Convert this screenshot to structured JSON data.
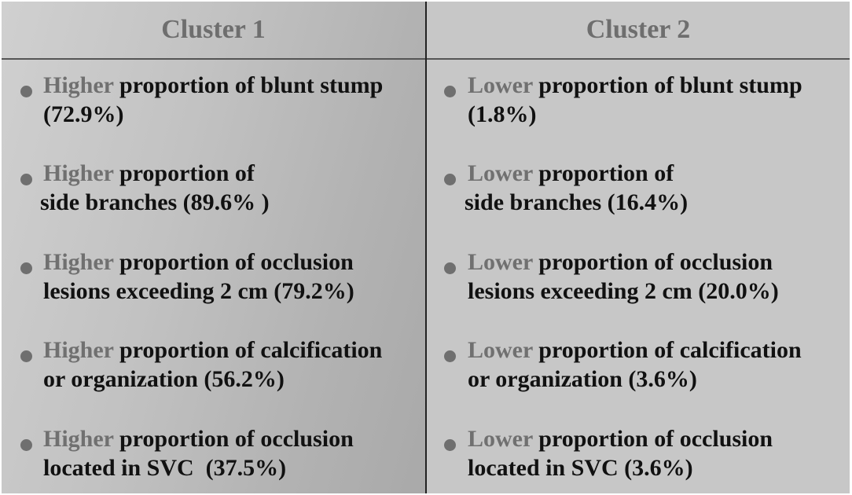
{
  "columns": [
    {
      "header": "Cluster 1",
      "items": [
        {
          "keyword": "Higher",
          "line1_rest": " proportion of blunt stump",
          "line2": "(72.9%)"
        },
        {
          "keyword": "Higher",
          "line1_rest": " proportion of",
          "line2": "side branches (89.6% )"
        },
        {
          "keyword": "Higher",
          "line1_rest": " proportion of occlusion",
          "line2": "lesions exceeding 2 cm (79.2%)"
        },
        {
          "keyword": "Higher",
          "line1_rest": " proportion of calcification",
          "line2": "or organization (56.2%)"
        },
        {
          "keyword": "Higher",
          "line1_rest": " proportion of occlusion",
          "line2": "located in SVC  (37.5%)"
        }
      ]
    },
    {
      "header": "Cluster 2",
      "items": [
        {
          "keyword": "Lower",
          "line1_rest": " proportion of blunt stump",
          "line2": "(1.8%)"
        },
        {
          "keyword": "Lower",
          "line1_rest": " proportion of",
          "line2": "side branches (16.4%)"
        },
        {
          "keyword": "Lower",
          "line1_rest": " proportion of occlusion",
          "line2": "lesions exceeding 2 cm (20.0%)"
        },
        {
          "keyword": "Lower",
          "line1_rest": " proportion of calcification",
          "line2": "or organization (3.6%)"
        },
        {
          "keyword": "Lower",
          "line1_rest": " proportion of occlusion",
          "line2": "located in SVC (3.6%)"
        }
      ]
    }
  ]
}
